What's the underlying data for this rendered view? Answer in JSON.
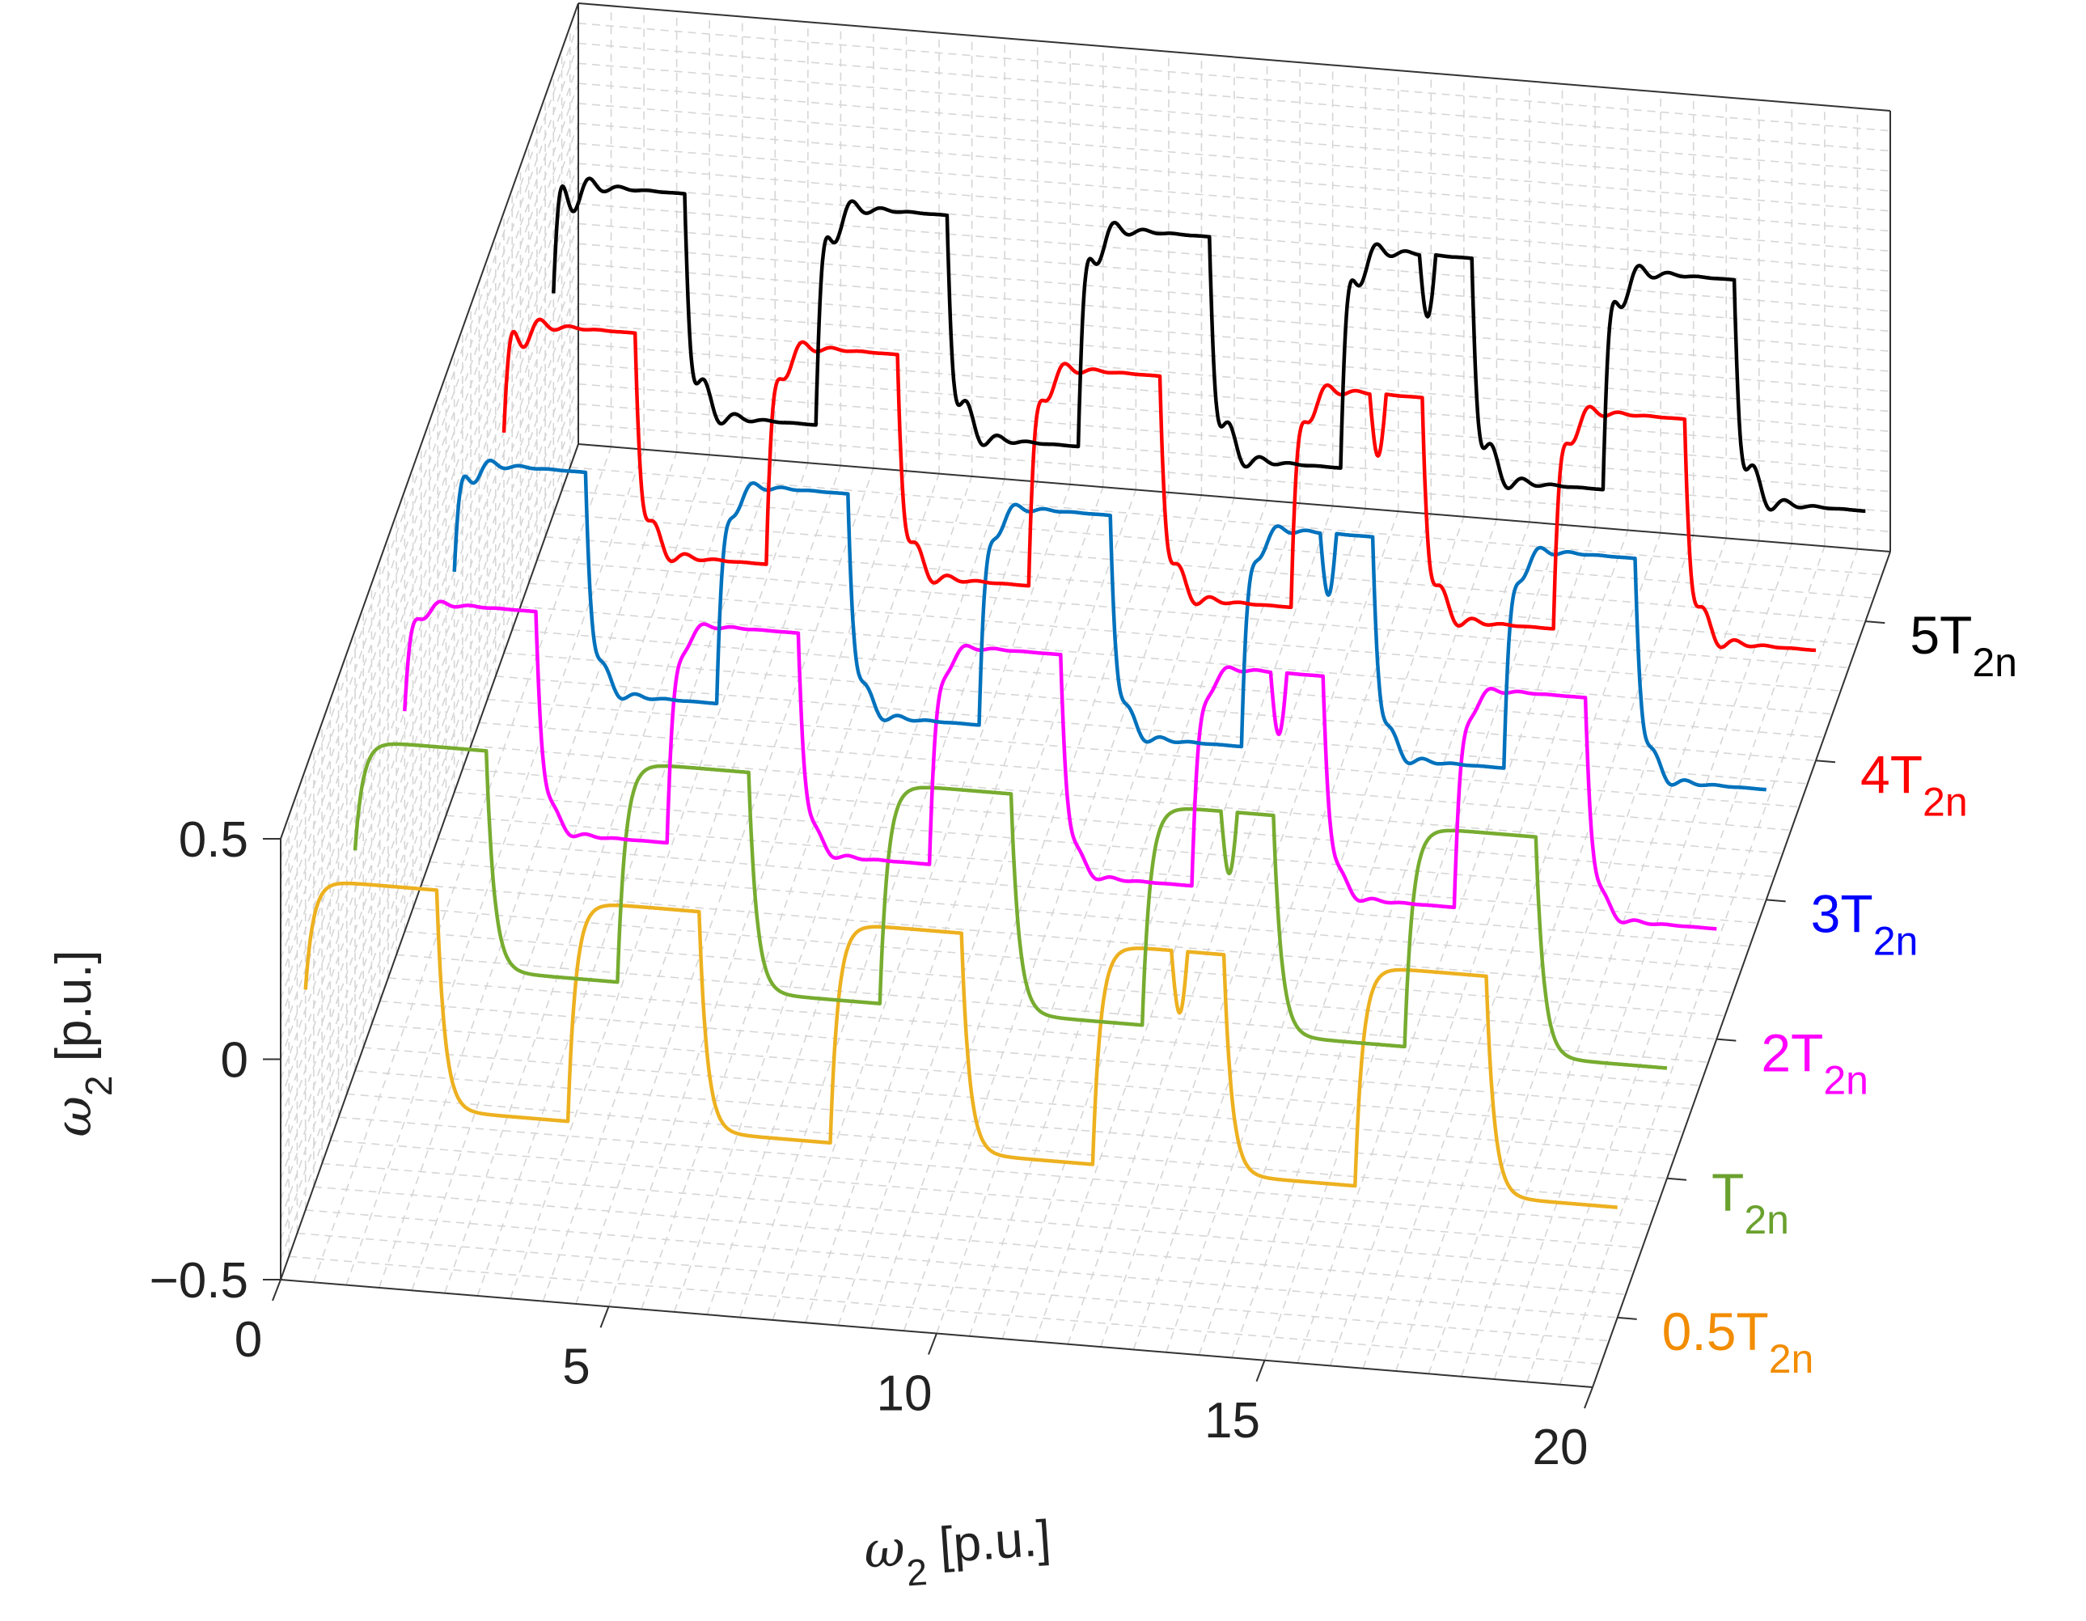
{
  "chart_data": {
    "type": "line",
    "style": "3d-waterfall",
    "title": "",
    "xlabel": {
      "symbol": "ω",
      "sub": "2",
      "unit": " [p.u.]"
    },
    "zlabel": {
      "symbol": "ω",
      "sub": "2",
      "unit": " [p.u.]"
    },
    "xlim": [
      0,
      20
    ],
    "zlim": [
      -0.5,
      0.5
    ],
    "x_ticks": [
      "0",
      "5",
      "10",
      "15",
      "20"
    ],
    "z_ticks": [
      "−0.5",
      "0",
      "0.5"
    ],
    "grid": true,
    "signal": {
      "description": "square-wave speed profile ±0.25 p.u., period 4 s, with transient at step changes and disturbance near t=13.2",
      "period": 4,
      "amplitude": 0.25,
      "disturbance_t": 13.2
    },
    "series": [
      {
        "name": "0.5T",
        "sub": "2n",
        "color": "#EDB120",
        "label_color": "#F28C00",
        "depth": 0
      },
      {
        "name": "T",
        "sub": "2n",
        "color": "#77AC30",
        "label_color": "#6AA12E",
        "depth": 1
      },
      {
        "name": "2T",
        "sub": "2n",
        "color": "#FF00FF",
        "label_color": "#FF00FF",
        "depth": 2
      },
      {
        "name": "3T",
        "sub": "2n",
        "color": "#0072BD",
        "label_color": "#0000FF",
        "depth": 3
      },
      {
        "name": "4T",
        "sub": "2n",
        "color": "#FF0000",
        "label_color": "#FF0000",
        "depth": 4
      },
      {
        "name": "5T",
        "sub": "2n",
        "color": "#000000",
        "label_color": "#000000",
        "depth": 5
      }
    ]
  }
}
